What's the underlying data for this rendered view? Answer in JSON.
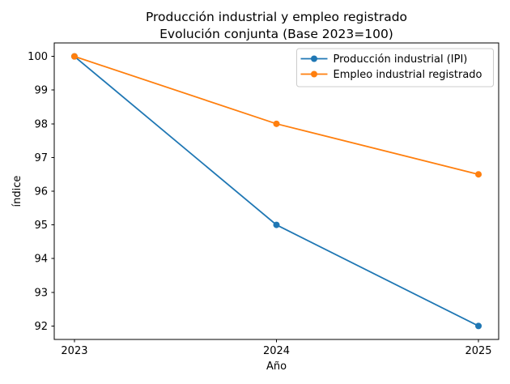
{
  "figure": {
    "background": "#ffffff",
    "text_color": "#000000"
  },
  "chart_data": {
    "type": "line",
    "title": "Producción industrial y empleo registrado",
    "subtitle": "Evolución conjunta (Base 2023=100)",
    "xlabel": "Año",
    "ylabel": "índice",
    "x": [
      2023,
      2024,
      2025
    ],
    "xtick_labels": [
      "2023",
      "2024",
      "2025"
    ],
    "yticks": [
      92,
      93,
      94,
      95,
      96,
      97,
      98,
      99,
      100
    ],
    "series": [
      {
        "name": "Producción industrial (IPI)",
        "color": "#1f77b4",
        "values": [
          100,
          95,
          92
        ]
      },
      {
        "name": "Empleo industrial registrado",
        "color": "#ff7f0e",
        "values": [
          100,
          98,
          96.5
        ]
      }
    ],
    "xlim": [
      2022.9,
      2025.1
    ],
    "ylim": [
      91.6,
      100.4
    ],
    "grid": false,
    "legend_position": "upper right",
    "legend_border_color": "#cccccc",
    "marker": "o"
  }
}
